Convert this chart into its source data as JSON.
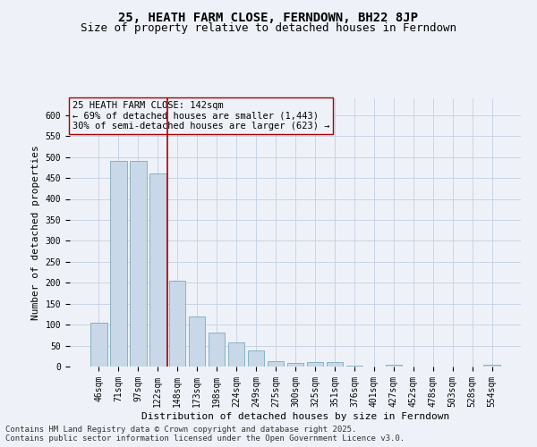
{
  "title": "25, HEATH FARM CLOSE, FERNDOWN, BH22 8JP",
  "subtitle": "Size of property relative to detached houses in Ferndown",
  "xlabel": "Distribution of detached houses by size in Ferndown",
  "ylabel": "Number of detached properties",
  "footer_line1": "Contains HM Land Registry data © Crown copyright and database right 2025.",
  "footer_line2": "Contains public sector information licensed under the Open Government Licence v3.0.",
  "annotation_line1": "25 HEATH FARM CLOSE: 142sqm",
  "annotation_line2": "← 69% of detached houses are smaller (1,443)",
  "annotation_line3": "30% of semi-detached houses are larger (623) →",
  "bar_color": "#c8d8e8",
  "bar_edge_color": "#7aaabb",
  "vline_color": "#aa0000",
  "vline_position": 3.5,
  "grid_color": "#c8d4e4",
  "background_color": "#eef2f8",
  "categories": [
    "46sqm",
    "71sqm",
    "97sqm",
    "122sqm",
    "148sqm",
    "173sqm",
    "198sqm",
    "224sqm",
    "249sqm",
    "275sqm",
    "300sqm",
    "325sqm",
    "351sqm",
    "376sqm",
    "401sqm",
    "427sqm",
    "452sqm",
    "478sqm",
    "503sqm",
    "528sqm",
    "554sqm"
  ],
  "values": [
    105,
    490,
    490,
    460,
    205,
    120,
    82,
    57,
    38,
    12,
    8,
    10,
    10,
    3,
    0,
    5,
    0,
    0,
    0,
    0,
    5
  ],
  "ylim": [
    0,
    640
  ],
  "yticks": [
    0,
    50,
    100,
    150,
    200,
    250,
    300,
    350,
    400,
    450,
    500,
    550,
    600
  ],
  "title_fontsize": 10,
  "subtitle_fontsize": 9,
  "axis_label_fontsize": 8,
  "tick_fontsize": 7,
  "annotation_fontsize": 7.5,
  "footer_fontsize": 6.5
}
